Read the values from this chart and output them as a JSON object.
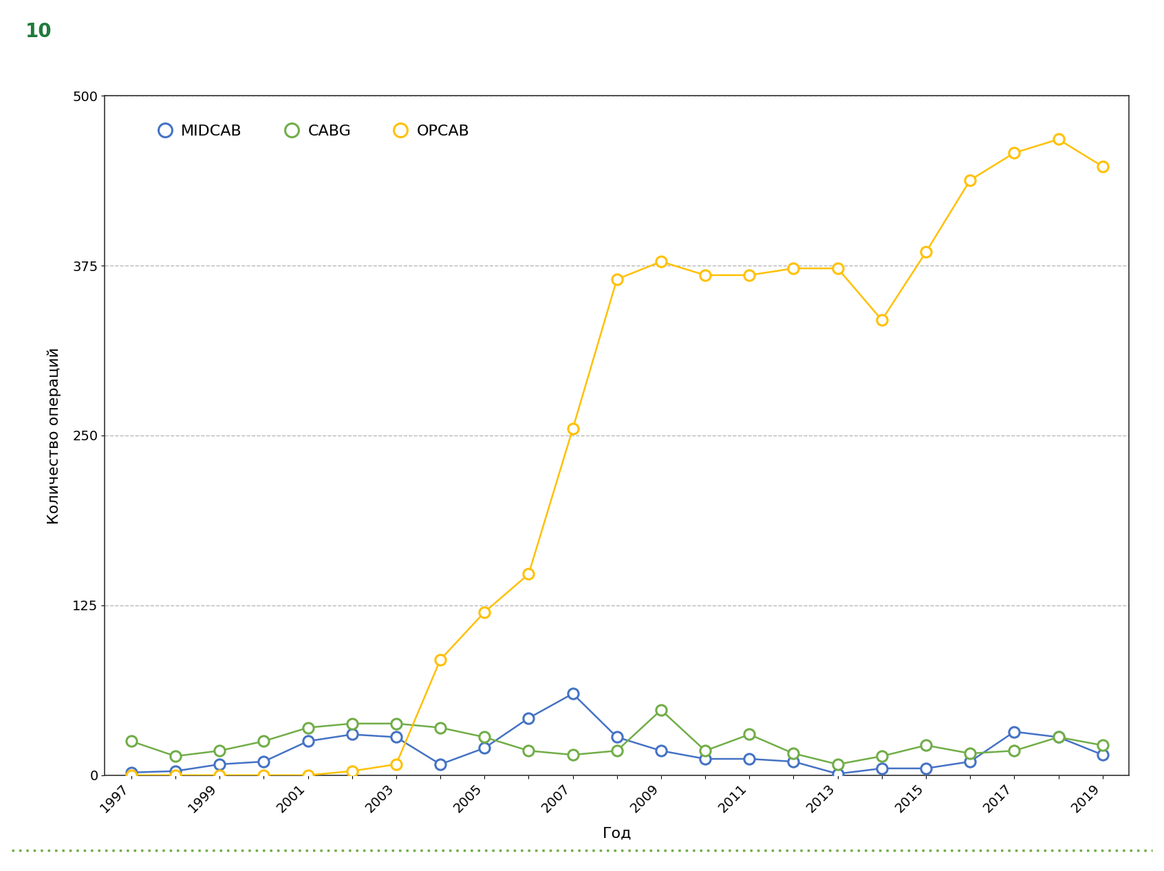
{
  "years": [
    1997,
    1998,
    1999,
    2000,
    2001,
    2002,
    2003,
    2004,
    2005,
    2006,
    2007,
    2008,
    2009,
    2010,
    2011,
    2012,
    2013,
    2014,
    2015,
    2016,
    2017,
    2018,
    2019
  ],
  "MIDCAB": [
    2,
    3,
    8,
    10,
    25,
    30,
    28,
    8,
    20,
    42,
    60,
    28,
    18,
    12,
    12,
    10,
    1,
    5,
    5,
    10,
    32,
    28,
    15
  ],
  "CABG": [
    25,
    14,
    18,
    25,
    35,
    38,
    38,
    35,
    28,
    18,
    15,
    18,
    48,
    18,
    30,
    16,
    8,
    14,
    22,
    16,
    18,
    28,
    22
  ],
  "OPCAB": [
    0,
    0,
    0,
    0,
    0,
    3,
    8,
    85,
    120,
    148,
    255,
    365,
    378,
    368,
    368,
    373,
    373,
    335,
    385,
    438,
    458,
    468,
    448
  ],
  "MIDCAB_color": "#4472c4",
  "CABG_color": "#70ad47",
  "OPCAB_color": "#ffc000",
  "background_color": "#ffffff",
  "grid_color": "#999999",
  "title_page": "10",
  "title_page_color": "#1f7a3c",
  "ylabel": "Количество операций",
  "xlabel": "Год",
  "ylim": [
    0,
    500
  ],
  "yticks": [
    0,
    125,
    250,
    375,
    500
  ],
  "marker_size": 11,
  "line_width": 1.8,
  "legend_fontsize": 16,
  "tick_fontsize": 14,
  "label_fontsize": 16
}
